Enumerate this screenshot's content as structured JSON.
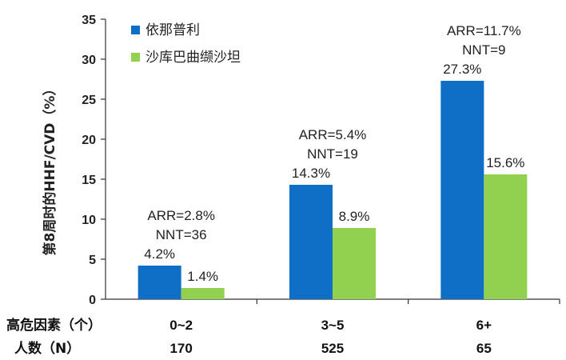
{
  "chart_data": {
    "type": "bar",
    "ylabel": "第8周时的HHF/CVD（%）",
    "ylim": [
      0,
      35
    ],
    "yticks": [
      0,
      5,
      10,
      15,
      20,
      25,
      30,
      35
    ],
    "categories": [
      "0~2",
      "3~5",
      "6+"
    ],
    "series": [
      {
        "name": "依那普利",
        "color": "#0f6fc6",
        "values": [
          4.2,
          14.3,
          27.3
        ],
        "labels": [
          "4.2%",
          "14.3%",
          "27.3%"
        ]
      },
      {
        "name": "沙库巴曲缬沙坦",
        "color": "#92d050",
        "values": [
          1.4,
          8.9,
          15.6
        ],
        "labels": [
          "1.4%",
          "8.9%",
          "15.6%"
        ]
      }
    ],
    "annotations": [
      {
        "arr": "ARR=2.8%",
        "nnt": "NNT=36"
      },
      {
        "arr": "ARR=5.4%",
        "nnt": "NNT=19"
      },
      {
        "arr": "ARR=11.7%",
        "nnt": "NNT=9"
      }
    ],
    "legend_position": "top-left",
    "grid": false,
    "table": {
      "row1_label": "高危因素（个）",
      "row2_label": "人数（N）",
      "row1_values": [
        "0~2",
        "3~5",
        "6+"
      ],
      "row2_values": [
        "170",
        "525",
        "65"
      ]
    }
  }
}
